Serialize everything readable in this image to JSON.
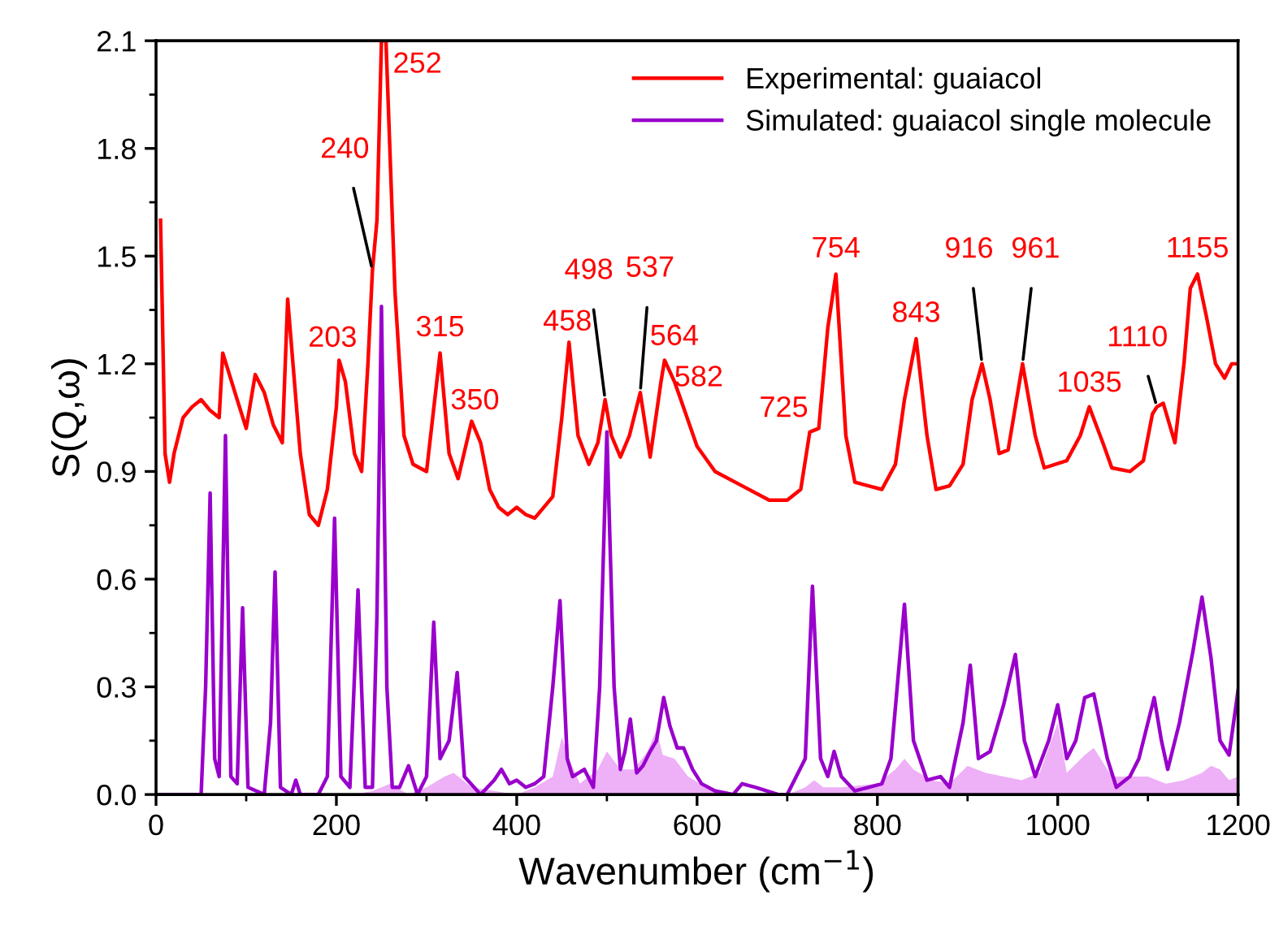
{
  "chart_data": {
    "type": "line",
    "xlabel": "Wavenumber (cm$^{−1}$)",
    "ylabel": "S(Q,ω)",
    "xlim": [
      0,
      1200
    ],
    "ylim": [
      0,
      2.1
    ],
    "xticks": [
      0,
      200,
      400,
      600,
      800,
      1000,
      1200
    ],
    "yticks": [
      {
        "value": 0,
        "label": "0.0"
      },
      0.3,
      0.6,
      0.9,
      1.2,
      1.5,
      1.8,
      2.1
    ],
    "grid": false,
    "legend": "top right",
    "marker": "none",
    "line_style": "solid",
    "series": [
      {
        "type": "area",
        "color": "#eeb0f7",
        "x": [
          0,
          220,
          240,
          260,
          280,
          300,
          320,
          330,
          350,
          400,
          420,
          440,
          450,
          458,
          470,
          490,
          500,
          515,
          530,
          545,
          555,
          562,
          575,
          590,
          610,
          650,
          700,
          720,
          730,
          740,
          760,
          800,
          820,
          830,
          840,
          860,
          880,
          900,
          920,
          940,
          960,
          980,
          1000,
          1010,
          1030,
          1040,
          1060,
          1080,
          1100,
          1120,
          1140,
          1160,
          1170,
          1180,
          1190,
          1200
        ],
        "values": [
          0,
          0,
          0.01,
          0.03,
          0,
          0.02,
          0.05,
          0.06,
          0.02,
          0,
          0.02,
          0.05,
          0.16,
          0.1,
          0.03,
          0.07,
          0.12,
          0.07,
          0.07,
          0.12,
          0.18,
          0.11,
          0.1,
          0.05,
          0.02,
          0,
          0,
          0.02,
          0.04,
          0.02,
          0.02,
          0.03,
          0.07,
          0.1,
          0.07,
          0.04,
          0.03,
          0.08,
          0.06,
          0.05,
          0.04,
          0.06,
          0.2,
          0.06,
          0.11,
          0.13,
          0.05,
          0.05,
          0.05,
          0.03,
          0.04,
          0.06,
          0.08,
          0.07,
          0.04,
          0.05
        ]
      },
      {
        "name": "Experimental: guaiacol",
        "color": "#ff0000",
        "x": [
          5,
          10,
          15,
          20,
          30,
          40,
          50,
          60,
          70,
          74,
          90,
          100,
          110,
          120,
          130,
          140,
          146,
          160,
          170,
          180,
          190,
          200,
          203,
          210,
          220,
          228,
          235,
          240,
          245,
          250,
          255,
          265,
          275,
          285,
          300,
          315,
          325,
          335,
          350,
          360,
          370,
          380,
          390,
          400,
          410,
          420,
          440,
          450,
          458,
          468,
          480,
          490,
          498,
          505,
          515,
          525,
          537,
          548,
          560,
          564,
          575,
          582,
          600,
          620,
          650,
          680,
          700,
          715,
          725,
          735,
          745,
          754,
          765,
          775,
          790,
          805,
          820,
          830,
          843,
          855,
          865,
          880,
          895,
          905,
          916,
          925,
          935,
          945,
          961,
          975,
          985,
          1010,
          1025,
          1035,
          1050,
          1060,
          1080,
          1095,
          1105,
          1110,
          1117,
          1130,
          1140,
          1147,
          1155,
          1165,
          1175,
          1185,
          1193,
          1200
        ],
        "values": [
          1.6,
          0.95,
          0.87,
          0.95,
          1.05,
          1.08,
          1.1,
          1.07,
          1.05,
          1.23,
          1.1,
          1.02,
          1.17,
          1.12,
          1.03,
          0.98,
          1.38,
          0.95,
          0.78,
          0.75,
          0.85,
          1.08,
          1.21,
          1.15,
          0.95,
          0.9,
          1.2,
          1.46,
          1.6,
          2.1,
          2.1,
          1.4,
          1.0,
          0.92,
          0.9,
          1.23,
          0.95,
          0.88,
          1.04,
          0.98,
          0.85,
          0.8,
          0.78,
          0.8,
          0.78,
          0.77,
          0.83,
          1.05,
          1.26,
          1.0,
          0.92,
          0.98,
          1.1,
          1.0,
          0.94,
          1.0,
          1.12,
          0.94,
          1.15,
          1.21,
          1.15,
          1.1,
          0.97,
          0.9,
          0.86,
          0.82,
          0.82,
          0.85,
          1.01,
          1.02,
          1.3,
          1.45,
          1.0,
          0.87,
          0.86,
          0.85,
          0.92,
          1.1,
          1.27,
          1.0,
          0.85,
          0.86,
          0.92,
          1.1,
          1.2,
          1.1,
          0.95,
          0.96,
          1.2,
          1.0,
          0.91,
          0.93,
          1.0,
          1.08,
          0.98,
          0.91,
          0.9,
          0.93,
          1.06,
          1.08,
          1.09,
          0.98,
          1.2,
          1.41,
          1.45,
          1.33,
          1.2,
          1.16,
          1.2,
          1.2
        ]
      },
      {
        "name": "Simulated: guaiacol single molecule",
        "color": "#9900cc",
        "x": [
          0,
          50,
          55,
          60,
          65,
          70,
          77,
          83,
          90,
          96,
          102,
          120,
          127,
          132,
          138,
          150,
          155,
          160,
          180,
          190,
          198,
          205,
          215,
          224,
          232,
          240,
          245,
          250,
          256,
          262,
          270,
          280,
          290,
          300,
          308,
          315,
          325,
          334,
          342,
          360,
          375,
          383,
          392,
          400,
          410,
          420,
          430,
          440,
          448,
          456,
          462,
          475,
          485,
          492,
          500,
          508,
          515,
          520,
          526,
          533,
          540,
          548,
          555,
          563,
          570,
          578,
          585,
          595,
          605,
          620,
          640,
          650,
          665,
          690,
          700,
          710,
          720,
          728,
          737,
          745,
          752,
          760,
          775,
          790,
          805,
          815,
          830,
          840,
          855,
          870,
          880,
          895,
          903,
          912,
          925,
          940,
          953,
          963,
          975,
          990,
          1000,
          1010,
          1020,
          1030,
          1040,
          1055,
          1065,
          1080,
          1090,
          1100,
          1107,
          1115,
          1122,
          1135,
          1150,
          1160,
          1170,
          1180,
          1190,
          1200
        ],
        "values": [
          0,
          0,
          0.3,
          0.84,
          0.1,
          0.05,
          1.0,
          0.05,
          0.03,
          0.52,
          0.02,
          0,
          0.2,
          0.62,
          0.02,
          0,
          0.04,
          0,
          0,
          0.05,
          0.77,
          0.05,
          0.02,
          0.57,
          0.02,
          0.02,
          0.5,
          1.36,
          0.3,
          0.02,
          0.02,
          0.08,
          0,
          0.05,
          0.48,
          0.1,
          0.15,
          0.34,
          0.05,
          0,
          0.04,
          0.07,
          0.03,
          0.04,
          0.02,
          0.03,
          0.05,
          0.3,
          0.54,
          0.1,
          0.05,
          0.07,
          0.02,
          0.3,
          1.01,
          0.3,
          0.07,
          0.12,
          0.21,
          0.06,
          0.08,
          0.12,
          0.15,
          0.27,
          0.19,
          0.13,
          0.13,
          0.07,
          0.03,
          0.01,
          0,
          0.03,
          0.02,
          0,
          0,
          0.05,
          0.1,
          0.58,
          0.1,
          0.05,
          0.12,
          0.05,
          0.01,
          0.02,
          0.03,
          0.1,
          0.53,
          0.15,
          0.04,
          0.05,
          0.02,
          0.2,
          0.36,
          0.1,
          0.12,
          0.25,
          0.39,
          0.15,
          0.05,
          0.15,
          0.25,
          0.1,
          0.15,
          0.27,
          0.28,
          0.1,
          0.02,
          0.05,
          0.1,
          0.2,
          0.27,
          0.15,
          0.07,
          0.2,
          0.4,
          0.55,
          0.38,
          0.15,
          0.11,
          0.29
        ]
      }
    ],
    "annotations": [
      {
        "text": "203",
        "x": 203,
        "y": 1.21
      },
      {
        "text": "240",
        "x": 240,
        "y": 1.46
      },
      {
        "text": "252",
        "x": 252,
        "y": 2.1
      },
      {
        "text": "315",
        "x": 315,
        "y": 1.23
      },
      {
        "text": "350",
        "x": 350,
        "y": 1.04
      },
      {
        "text": "458",
        "x": 458,
        "y": 1.26
      },
      {
        "text": "498",
        "x": 498,
        "y": 1.1
      },
      {
        "text": "537",
        "x": 537,
        "y": 1.12
      },
      {
        "text": "564",
        "x": 564,
        "y": 1.21
      },
      {
        "text": "582",
        "x": 582,
        "y": 1.1
      },
      {
        "text": "725",
        "x": 725,
        "y": 1.01
      },
      {
        "text": "754",
        "x": 754,
        "y": 1.45
      },
      {
        "text": "843",
        "x": 843,
        "y": 1.27
      },
      {
        "text": "916",
        "x": 916,
        "y": 1.2
      },
      {
        "text": "961",
        "x": 961,
        "y": 1.2
      },
      {
        "text": "1035",
        "x": 1035,
        "y": 1.08
      },
      {
        "text": "1110",
        "x": 1110,
        "y": 1.08
      },
      {
        "text": "1155",
        "x": 1155,
        "y": 1.45
      }
    ]
  }
}
